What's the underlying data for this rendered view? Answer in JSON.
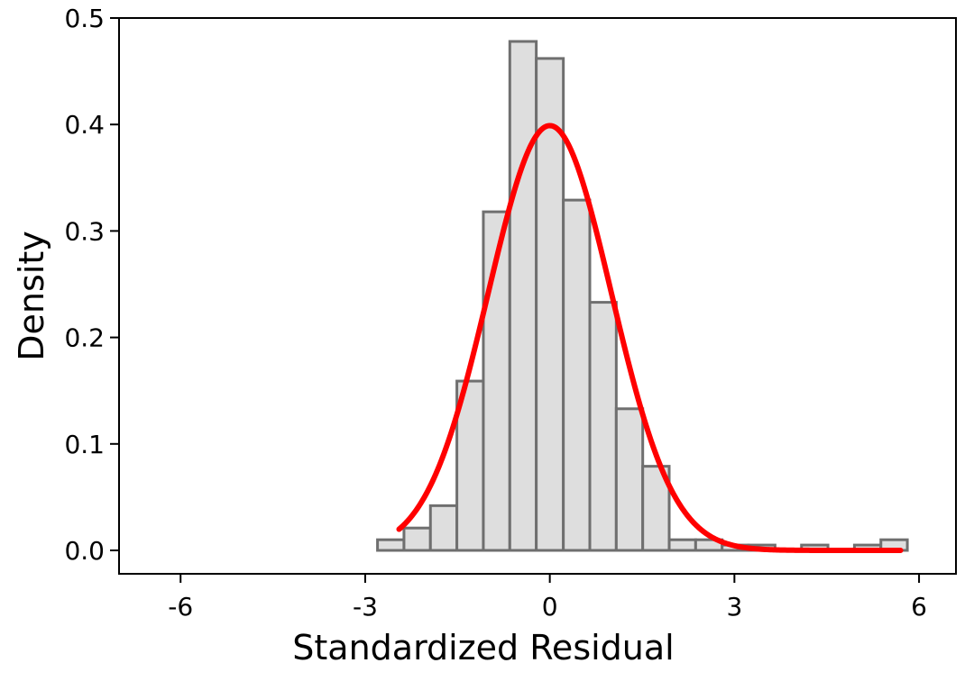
{
  "chart_data": {
    "type": "bar",
    "xlabel": "Standardized Residual",
    "ylabel": "Density",
    "xlim": [
      -7,
      6.6
    ],
    "ylim": [
      -0.022,
      0.5
    ],
    "xticks": [
      -6,
      -3,
      0,
      3,
      6
    ],
    "xtick_labels": [
      "-6",
      "-3",
      "0",
      "3",
      "6"
    ],
    "yticks": [
      0.0,
      0.1,
      0.2,
      0.3,
      0.4,
      0.5
    ],
    "ytick_labels": [
      "0.0",
      "0.1",
      "0.2",
      "0.3",
      "0.4",
      "0.5"
    ],
    "grid": false,
    "bins": [
      {
        "x0": -2.8,
        "x1": -2.37,
        "density": 0.01
      },
      {
        "x0": -2.37,
        "x1": -1.94,
        "density": 0.021
      },
      {
        "x0": -1.94,
        "x1": -1.51,
        "density": 0.042
      },
      {
        "x0": -1.51,
        "x1": -1.08,
        "density": 0.159
      },
      {
        "x0": -1.08,
        "x1": -0.65,
        "density": 0.318
      },
      {
        "x0": -0.65,
        "x1": -0.22,
        "density": 0.478
      },
      {
        "x0": -0.22,
        "x1": 0.22,
        "density": 0.462
      },
      {
        "x0": 0.22,
        "x1": 0.65,
        "density": 0.329
      },
      {
        "x0": 0.65,
        "x1": 1.08,
        "density": 0.233
      },
      {
        "x0": 1.08,
        "x1": 1.51,
        "density": 0.133
      },
      {
        "x0": 1.51,
        "x1": 1.94,
        "density": 0.079
      },
      {
        "x0": 1.94,
        "x1": 2.37,
        "density": 0.01
      },
      {
        "x0": 2.37,
        "x1": 2.8,
        "density": 0.01
      },
      {
        "x0": 2.8,
        "x1": 3.23,
        "density": 0.005
      },
      {
        "x0": 3.23,
        "x1": 3.66,
        "density": 0.005
      },
      {
        "x0": 4.09,
        "x1": 4.52,
        "density": 0.005
      },
      {
        "x0": 4.95,
        "x1": 5.38,
        "density": 0.005
      },
      {
        "x0": 5.38,
        "x1": 5.81,
        "density": 0.01
      }
    ],
    "overlay": {
      "type": "line",
      "distribution": "normal",
      "mean": 0,
      "sd": 1,
      "x_range": [
        -2.45,
        5.7
      ],
      "color": "#ff0000"
    }
  }
}
